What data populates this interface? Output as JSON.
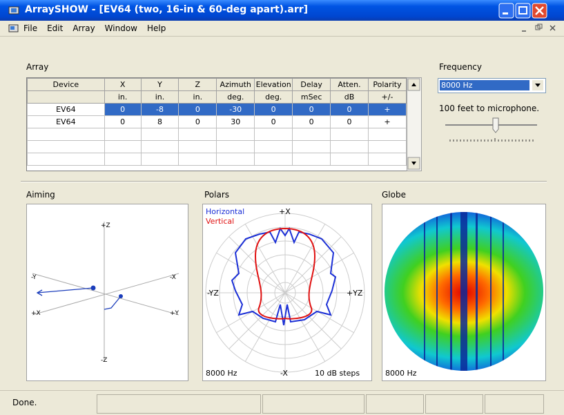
{
  "window": {
    "title": "ArraySHOW - [EV64 (two, 16-in & 60-deg apart).arr]"
  },
  "menu": [
    "File",
    "Edit",
    "Array",
    "Window",
    "Help"
  ],
  "array": {
    "label": "Array",
    "columns": [
      "Device",
      "X",
      "Y",
      "Z",
      "Azimuth",
      "Elevation",
      "Delay",
      "Atten.",
      "Polarity"
    ],
    "units": [
      null,
      "in.",
      "in.",
      "in.",
      "deg.",
      "deg.",
      "mSec",
      "dB",
      "+/-"
    ],
    "rows": [
      [
        "EV64",
        0,
        -8,
        0,
        -30,
        0,
        0,
        0,
        "+"
      ],
      [
        "EV64",
        0,
        8,
        0,
        30,
        0,
        0,
        0,
        "+"
      ]
    ]
  },
  "frequency": {
    "label": "Frequency",
    "selected": "8000 Hz",
    "distance": "100 feet to microphone."
  },
  "aiming": {
    "label": "Aiming",
    "axes": [
      "+Z",
      "-Y",
      "-X",
      "+X",
      "+Y",
      "-Z"
    ]
  },
  "polars": {
    "label": "Polars",
    "legend": [
      "Horizontal",
      "Vertical"
    ],
    "top": "+X",
    "left": "-YZ",
    "right": "+YZ",
    "bottom": "-X",
    "frequency": "8000 Hz",
    "steps": "10 dB steps"
  },
  "globe": {
    "label": "Globe",
    "frequency": "8000 Hz"
  },
  "status": "Done."
}
